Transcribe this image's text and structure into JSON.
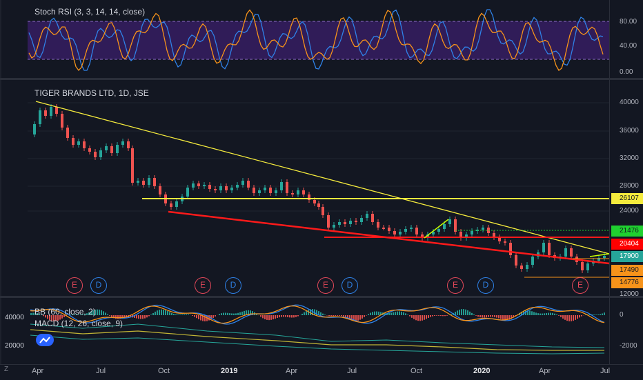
{
  "stoch": {
    "legend": "Stoch RSI (3, 3, 14, 14, close)",
    "axis": [
      "80.00",
      "40.00",
      "0.00"
    ]
  },
  "main": {
    "legend": "TIGER BRANDS LTD, 1D, JSE",
    "axis": [
      "40000",
      "36000",
      "32000",
      "28000",
      "24000",
      "12000"
    ],
    "tags": [
      {
        "value": "26107",
        "bg": "#f5eb3d",
        "fg": "#131722"
      },
      {
        "value": "21476",
        "bg": "#1fd02f",
        "fg": "#131722"
      },
      {
        "value": "20404",
        "bg": "#ff0000",
        "fg": "#ffffff"
      },
      {
        "value": "17900",
        "bg": "#26a69a",
        "fg": "#ffffff"
      },
      {
        "value": "17490",
        "bg": "#f7931a",
        "fg": "#131722"
      },
      {
        "value": "14776",
        "bg": "#f7931a",
        "fg": "#131722"
      }
    ],
    "events": [
      "E",
      "D",
      "E",
      "D",
      "E",
      "D",
      "E",
      "D",
      "E"
    ]
  },
  "lower": {
    "legend_bb": "BB (60, close, 2)",
    "legend_macd": "MACD (12, 26, close, 9)",
    "left_axis": [
      "40000",
      "20000"
    ],
    "right_axis": [
      "0",
      "-2000"
    ]
  },
  "xaxis": {
    "labels": [
      "Apr",
      "Jul",
      "Oct",
      "2019",
      "Apr",
      "Jul",
      "Oct",
      "2020",
      "Apr",
      "Jul"
    ],
    "bold": [
      false,
      false,
      false,
      true,
      false,
      false,
      false,
      true,
      false,
      false
    ]
  },
  "left_marker": "Z",
  "colors": {
    "yellow": "#f5eb3d",
    "red": "#ff1a1a",
    "green": "#1fd02f",
    "orange": "#f7931a",
    "stoch_band": "#3b1f6b"
  }
}
